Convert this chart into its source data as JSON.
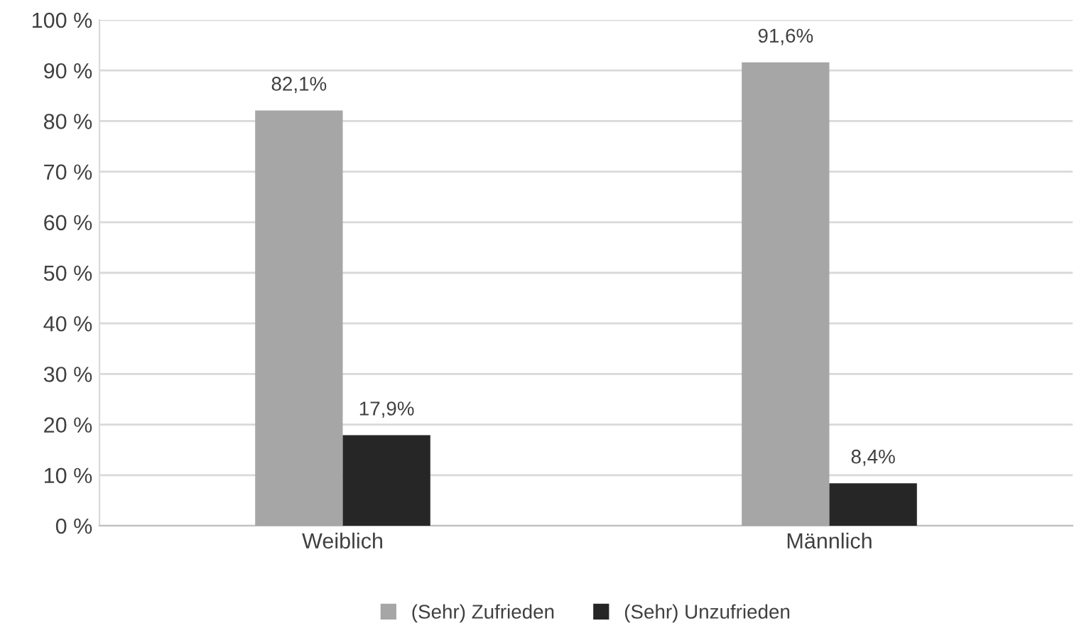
{
  "chart_data": {
    "type": "bar",
    "categories": [
      "Weiblich",
      "Männlich"
    ],
    "series": [
      {
        "name": "(Sehr) Zufrieden",
        "color": "#a6a6a6",
        "values": [
          82.1,
          91.6
        ],
        "value_labels": [
          "82,1%",
          "91,6%"
        ]
      },
      {
        "name": "(Sehr) Unzufrieden",
        "color": "#262626",
        "values": [
          17.9,
          8.4
        ],
        "value_labels": [
          "17,9%",
          "8,4%"
        ]
      }
    ],
    "ylim": [
      0,
      100
    ],
    "yticks": [
      {
        "value": 0,
        "label": "0 %"
      },
      {
        "value": 10,
        "label": "10 %"
      },
      {
        "value": 20,
        "label": "20 %"
      },
      {
        "value": 30,
        "label": "30 %"
      },
      {
        "value": 40,
        "label": "40 %"
      },
      {
        "value": 50,
        "label": "50 %"
      },
      {
        "value": 60,
        "label": "60 %"
      },
      {
        "value": 70,
        "label": "70 %"
      },
      {
        "value": 80,
        "label": "80 %"
      },
      {
        "value": 90,
        "label": "90 %"
      },
      {
        "value": 100,
        "label": "100 %"
      }
    ],
    "grid": "y",
    "legend": "bottom"
  }
}
